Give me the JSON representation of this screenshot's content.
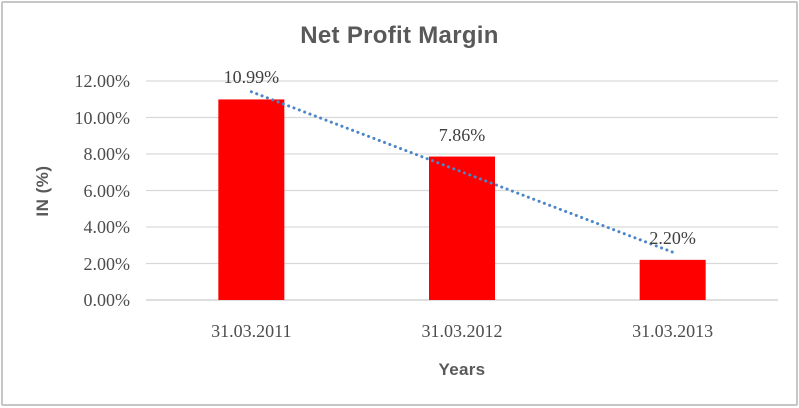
{
  "window": {
    "background": "#FFFFFF",
    "border_color": "#C6C6C6"
  },
  "chart_data": {
    "type": "bar",
    "title": "Net Profit Margin",
    "xlabel": "Years",
    "ylabel": "IN (%)",
    "categories": [
      "31.03.2011",
      "31.03.2012",
      "31.03.2013"
    ],
    "values": [
      10.99,
      7.86,
      2.2
    ],
    "data_labels": [
      "10.99%",
      "7.86%",
      "2.20%"
    ],
    "ytick_labels": [
      "12.00%",
      "10.00%",
      "8.00%",
      "6.00%",
      "4.00%",
      "2.00%",
      "0.00%"
    ],
    "ylim": [
      0,
      12
    ],
    "ytick_step": 2,
    "grid": true,
    "legend_position": "none",
    "bar_color": "#FF0000",
    "trendline": {
      "type": "linear",
      "style": "dotted",
      "color": "#4A86C8"
    },
    "title_color": "#595959",
    "axis_title_color": "#595959",
    "tick_label_color": "#4D4D4D",
    "data_label_color": "#404040",
    "gridline_color": "#D9D9D9",
    "axis_line_color": "#C9C9C9"
  }
}
